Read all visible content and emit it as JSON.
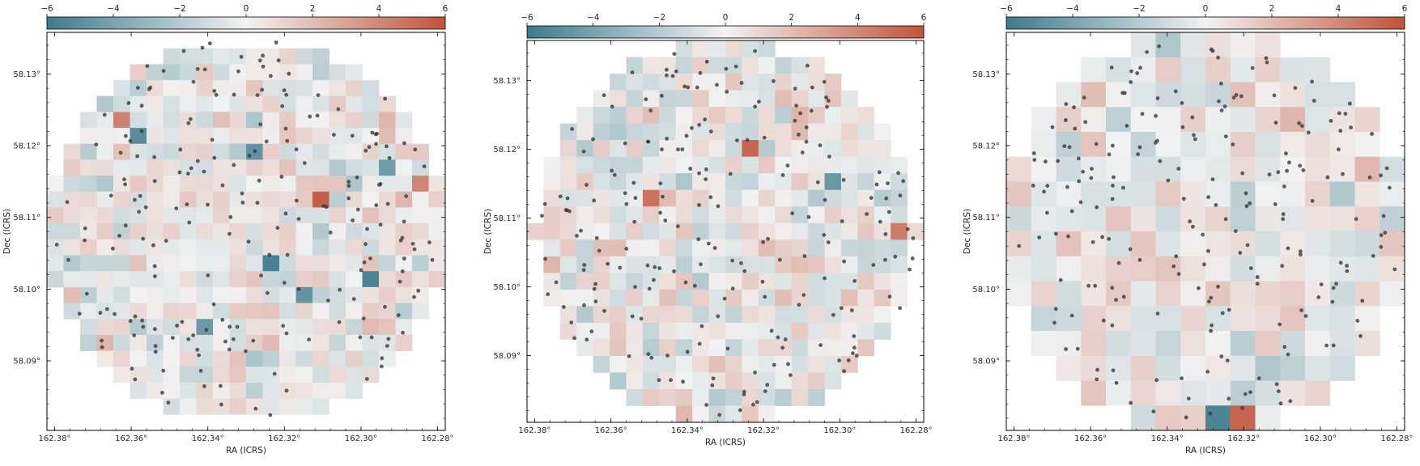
{
  "figure": {
    "colormap": {
      "low": "#3d7b8d",
      "mid": "#f2f2f2",
      "high": "#c1533a",
      "vmin": -6,
      "vmax": 6
    },
    "point_color": "#3a3a3a"
  },
  "chart_data": [
    {
      "type": "heatmap",
      "title": "",
      "xlabel": "RA (ICRS)",
      "ylabel": "Dec (ICRS)",
      "xlim": [
        162.382,
        162.278
      ],
      "ylim": [
        58.0803,
        58.1358
      ],
      "xticks": [
        "162.38°",
        "162.36°",
        "162.34°",
        "162.32°",
        "162.30°",
        "162.28°"
      ],
      "yticks": [
        "58.09°",
        "58.10°",
        "58.11°",
        "58.12°",
        "58.13°"
      ],
      "colorbar": {
        "ticks": [
          "−6",
          "−4",
          "−2",
          "0",
          "2",
          "4",
          "6"
        ],
        "range": [
          -6,
          6
        ]
      },
      "grid": {
        "ncols": 24,
        "nrows": 25
      },
      "pixel_scale_note": "fine binning",
      "seed": 11,
      "n_points": 215
    },
    {
      "type": "heatmap",
      "title": "",
      "xlabel": "RA (ICRS)",
      "ylabel": "Dec (ICRS)",
      "xlim": [
        162.382,
        162.278
      ],
      "ylim": [
        58.0803,
        58.1358
      ],
      "xticks": [
        "162.38°",
        "162.36°",
        "162.34°",
        "162.32°",
        "162.30°",
        "162.28°"
      ],
      "yticks": [
        "58.09°",
        "58.10°",
        "58.11°",
        "58.12°",
        "58.13°"
      ],
      "colorbar": {
        "ticks": [
          "−6",
          "−4",
          "−2",
          "0",
          "2",
          "4",
          "6"
        ],
        "range": [
          -6,
          6
        ]
      },
      "grid": {
        "ncols": 24,
        "nrows": 23
      },
      "pixel_scale_note": "medium binning",
      "seed": 23,
      "n_points": 215
    },
    {
      "type": "heatmap",
      "title": "",
      "xlabel": "RA (ICRS)",
      "ylabel": "Dec (ICRS)",
      "xlim": [
        162.382,
        162.278
      ],
      "ylim": [
        58.0803,
        58.1358
      ],
      "xticks": [
        "162.38°",
        "162.36°",
        "162.34°",
        "162.32°",
        "162.30°",
        "162.28°"
      ],
      "yticks": [
        "58.09°",
        "58.10°",
        "58.11°",
        "58.12°",
        "58.13°"
      ],
      "colorbar": {
        "ticks": [
          "−6",
          "−4",
          "−2",
          "0",
          "2",
          "4",
          "6"
        ],
        "range": [
          -6,
          6
        ]
      },
      "grid": {
        "ncols": 16,
        "nrows": 16
      },
      "pixel_scale_note": "coarse binning",
      "seed": 37,
      "n_points": 215
    }
  ]
}
